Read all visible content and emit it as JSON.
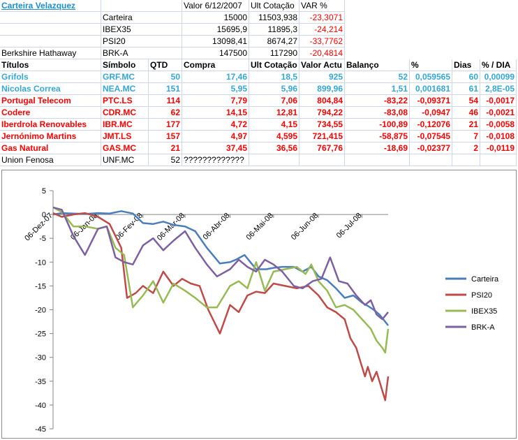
{
  "sheet": {
    "title_link": "Carteira Velazquez",
    "top_headers": [
      "Valor 6/12/2007",
      "Ult Cotação",
      "VAR %"
    ],
    "indices": [
      {
        "name": "",
        "symbol": "Carteira",
        "value": "15000",
        "ult": "11503,938",
        "var": "-23,3071"
      },
      {
        "name": "",
        "symbol": "IBEX35",
        "value": "15695,9",
        "ult": "11895,3",
        "var": "-24,214"
      },
      {
        "name": "",
        "symbol": "PSI20",
        "value": "13098,41",
        "ult": "8674,27",
        "var": "-33,7762"
      },
      {
        "name": "Berkshire Hathaway",
        "symbol": "BRK-A",
        "value": "147500",
        "ult": "117290",
        "var": "-20,4814"
      }
    ],
    "headers": [
      "Títulos",
      "Símbolo",
      "QTD",
      "Compra",
      "Ult Cotação",
      "Valor Actu",
      "Balanço",
      "%",
      "Dias",
      "% / DIA"
    ],
    "rows": [
      {
        "name": "Grifols",
        "symbol": "GRF.MC",
        "qtd": "50",
        "compra": "17,46",
        "ult": "18,5",
        "valor": "925",
        "balanco": "52",
        "pct": "0,059565",
        "dias": "60",
        "pct_dia": "0,00099",
        "color": "blue"
      },
      {
        "name": "Nicolas Correa",
        "symbol": "NEA.MC",
        "qtd": "151",
        "compra": "5,95",
        "ult": "5,96",
        "valor": "899,96",
        "balanco": "1,51",
        "pct": "0,001681",
        "dias": "61",
        "pct_dia": "2,8E-05",
        "color": "blue"
      },
      {
        "name": "Portugal Telecom",
        "symbol": "PTC.LS",
        "qtd": "114",
        "compra": "7,79",
        "ult": "7,06",
        "valor": "804,84",
        "balanco": "-83,22",
        "pct": "-0,09371",
        "dias": "54",
        "pct_dia": "-0,0017",
        "color": "red"
      },
      {
        "name": "Codere",
        "symbol": "CDR.MC",
        "qtd": "62",
        "compra": "14,15",
        "ult": "12,81",
        "valor": "794,22",
        "balanco": "-83,08",
        "pct": "-0,0947",
        "dias": "46",
        "pct_dia": "-0,0021",
        "color": "red"
      },
      {
        "name": "Iberdrola Renovables",
        "symbol": "IBR.MC",
        "qtd": "177",
        "compra": "4,72",
        "ult": "4,15",
        "valor": "734,55",
        "balanco": "-100,89",
        "pct": "-0,12076",
        "dias": "21",
        "pct_dia": "-0,0058",
        "color": "red"
      },
      {
        "name": "Jernónimo Martins",
        "symbol": "JMT.LS",
        "qtd": "157",
        "compra": "4,97",
        "ult": "4,595",
        "valor": "721,415",
        "balanco": "-58,875",
        "pct": "-0,07545",
        "dias": "7",
        "pct_dia": "-0,0108",
        "color": "red"
      },
      {
        "name": "Gas Natural",
        "symbol": "GAS.MC",
        "qtd": "21",
        "compra": "37,45",
        "ult": "36,56",
        "valor": "767,76",
        "balanco": "-18,69",
        "pct": "-0,02377",
        "dias": "2",
        "pct_dia": "-0,0119",
        "color": "red"
      },
      {
        "name": "Union Fenosa",
        "symbol": "UNF.MC",
        "qtd": "52",
        "compra": "?????????????",
        "ult": "",
        "valor": "",
        "balanco": "",
        "pct": "",
        "dias": "",
        "pct_dia": "",
        "color": "black"
      }
    ]
  },
  "colors": {
    "blue_text": "#33a8d6",
    "red_text": "#ff0000",
    "link": "#1f8fce"
  },
  "chart_data": {
    "type": "line",
    "ylim": [
      -45,
      5
    ],
    "yticks": [
      5,
      0,
      -5,
      -10,
      -15,
      -20,
      -25,
      -30,
      -35,
      -40,
      -45
    ],
    "xlim": [
      "2007-12-06",
      "2008-07-24"
    ],
    "xticks": [
      {
        "date": "2007-12-06",
        "label": "06-Dez-07"
      },
      {
        "date": "2008-01-06",
        "label": "06-Jan-08"
      },
      {
        "date": "2008-02-06",
        "label": "06-Fev-08"
      },
      {
        "date": "2008-03-06",
        "label": "06-Mar-08"
      },
      {
        "date": "2008-04-06",
        "label": "06-Abr-08"
      },
      {
        "date": "2008-05-06",
        "label": "06-Mai-08"
      },
      {
        "date": "2008-06-06",
        "label": "06-Jun-08"
      },
      {
        "date": "2008-07-06",
        "label": "06-Jul-08"
      }
    ],
    "legend_position": "right",
    "grid": false,
    "series": [
      {
        "name": "Carteira",
        "color": "#4a7ebb",
        "points": [
          [
            "2007-12-06",
            0
          ],
          [
            "2007-12-12",
            0.3
          ],
          [
            "2007-12-20",
            0.2
          ],
          [
            "2007-12-28",
            0.1
          ],
          [
            "2008-01-06",
            0.3
          ],
          [
            "2008-01-14",
            0.2
          ],
          [
            "2008-01-22",
            0.7
          ],
          [
            "2008-01-30",
            0.2
          ],
          [
            "2008-02-06",
            -1.8
          ],
          [
            "2008-02-13",
            -2
          ],
          [
            "2008-02-20",
            -1.5
          ],
          [
            "2008-02-27",
            -2.2
          ],
          [
            "2008-03-06",
            -2.5
          ],
          [
            "2008-03-13",
            -3.5
          ],
          [
            "2008-03-21",
            -7
          ],
          [
            "2008-03-30",
            -10.3
          ],
          [
            "2008-04-06",
            -10
          ],
          [
            "2008-04-10",
            -9.5
          ],
          [
            "2008-04-16",
            -8.5
          ],
          [
            "2008-04-24",
            -11.5
          ],
          [
            "2008-05-01",
            -11.5
          ],
          [
            "2008-05-06",
            -11.2
          ],
          [
            "2008-05-12",
            -11
          ],
          [
            "2008-05-20",
            -11
          ],
          [
            "2008-05-26",
            -12
          ],
          [
            "2008-06-01",
            -11
          ],
          [
            "2008-06-06",
            -13
          ],
          [
            "2008-06-12",
            -13.8
          ],
          [
            "2008-06-18",
            -15.5
          ],
          [
            "2008-06-24",
            -17.5
          ],
          [
            "2008-06-30",
            -17
          ],
          [
            "2008-07-06",
            -18.5
          ],
          [
            "2008-07-10",
            -19.2
          ],
          [
            "2008-07-14",
            -20
          ],
          [
            "2008-07-18",
            -21
          ],
          [
            "2008-07-22",
            -22.5
          ],
          [
            "2008-07-24",
            -23.3
          ]
        ]
      },
      {
        "name": "PSI20",
        "color": "#be4b48",
        "points": [
          [
            "2007-12-06",
            0.3
          ],
          [
            "2007-12-12",
            -0.5
          ],
          [
            "2007-12-20",
            0
          ],
          [
            "2007-12-28",
            0.3
          ],
          [
            "2008-01-06",
            -0.5
          ],
          [
            "2008-01-14",
            -2
          ],
          [
            "2008-01-22",
            -7
          ],
          [
            "2008-01-26",
            -17.5
          ],
          [
            "2008-02-01",
            -16.5
          ],
          [
            "2008-02-06",
            -15
          ],
          [
            "2008-02-13",
            -16.5
          ],
          [
            "2008-02-20",
            -12
          ],
          [
            "2008-02-27",
            -15
          ],
          [
            "2008-03-04",
            -13.5
          ],
          [
            "2008-03-10",
            -14.5
          ],
          [
            "2008-03-16",
            -15
          ],
          [
            "2008-03-22",
            -20
          ],
          [
            "2008-03-30",
            -25
          ],
          [
            "2008-04-06",
            -19
          ],
          [
            "2008-04-12",
            -20.5
          ],
          [
            "2008-04-18",
            -17
          ],
          [
            "2008-04-24",
            -16.2
          ],
          [
            "2008-04-30",
            -16.5
          ],
          [
            "2008-05-06",
            -14.5
          ],
          [
            "2008-05-14",
            -15
          ],
          [
            "2008-05-22",
            -15.5
          ],
          [
            "2008-05-30",
            -15
          ],
          [
            "2008-06-06",
            -17
          ],
          [
            "2008-06-12",
            -19.5
          ],
          [
            "2008-06-18",
            -20.5
          ],
          [
            "2008-06-24",
            -22
          ],
          [
            "2008-06-28",
            -26
          ],
          [
            "2008-07-02",
            -28
          ],
          [
            "2008-07-05",
            -31
          ],
          [
            "2008-07-08",
            -34
          ],
          [
            "2008-07-10",
            -32
          ],
          [
            "2008-07-13",
            -35
          ],
          [
            "2008-07-16",
            -33
          ],
          [
            "2008-07-19",
            -36
          ],
          [
            "2008-07-22",
            -39
          ],
          [
            "2008-07-24",
            -34
          ]
        ]
      },
      {
        "name": "IBEX35",
        "color": "#98b954",
        "points": [
          [
            "2007-12-06",
            1.5
          ],
          [
            "2007-12-12",
            0.5
          ],
          [
            "2007-12-20",
            -2.5
          ],
          [
            "2007-12-28",
            -2.5
          ],
          [
            "2008-01-06",
            -3
          ],
          [
            "2008-01-12",
            -2.5
          ],
          [
            "2008-01-18",
            -7
          ],
          [
            "2008-01-24",
            -8.5
          ],
          [
            "2008-01-30",
            -19.5
          ],
          [
            "2008-02-06",
            -17
          ],
          [
            "2008-02-13",
            -14
          ],
          [
            "2008-02-20",
            -18.5
          ],
          [
            "2008-02-27",
            -14.5
          ],
          [
            "2008-03-06",
            -16
          ],
          [
            "2008-03-13",
            -17.5
          ],
          [
            "2008-03-21",
            -19.5
          ],
          [
            "2008-03-28",
            -19.5
          ],
          [
            "2008-04-06",
            -15
          ],
          [
            "2008-04-12",
            -14
          ],
          [
            "2008-04-18",
            -15.5
          ],
          [
            "2008-04-24",
            -10
          ],
          [
            "2008-04-30",
            -16
          ],
          [
            "2008-05-06",
            -12
          ],
          [
            "2008-05-14",
            -11.5
          ],
          [
            "2008-05-22",
            -11
          ],
          [
            "2008-05-28",
            -12.5
          ],
          [
            "2008-06-01",
            -10.5
          ],
          [
            "2008-06-06",
            -14
          ],
          [
            "2008-06-12",
            -16
          ],
          [
            "2008-06-18",
            -19.5
          ],
          [
            "2008-06-24",
            -19
          ],
          [
            "2008-06-30",
            -20
          ],
          [
            "2008-07-06",
            -22
          ],
          [
            "2008-07-12",
            -24
          ],
          [
            "2008-07-16",
            -26.5
          ],
          [
            "2008-07-20",
            -28
          ],
          [
            "2008-07-22",
            -29
          ],
          [
            "2008-07-24",
            -24
          ]
        ]
      },
      {
        "name": "BRK-A",
        "color": "#7d60a0",
        "points": [
          [
            "2007-12-06",
            1.5
          ],
          [
            "2007-12-12",
            1
          ],
          [
            "2007-12-20",
            -4.5
          ],
          [
            "2007-12-28",
            -8.5
          ],
          [
            "2008-01-06",
            -3
          ],
          [
            "2008-01-12",
            -2.5
          ],
          [
            "2008-01-18",
            -9
          ],
          [
            "2008-01-24",
            -10
          ],
          [
            "2008-01-30",
            -10.5
          ],
          [
            "2008-02-06",
            -6.5
          ],
          [
            "2008-02-13",
            -5
          ],
          [
            "2008-02-20",
            -7.5
          ],
          [
            "2008-02-27",
            -5.5
          ],
          [
            "2008-03-06",
            -3.5
          ],
          [
            "2008-03-13",
            -7
          ],
          [
            "2008-03-21",
            -10.5
          ],
          [
            "2008-03-28",
            -13
          ],
          [
            "2008-04-06",
            -11.5
          ],
          [
            "2008-04-12",
            -9.5
          ],
          [
            "2008-04-18",
            -11
          ],
          [
            "2008-04-24",
            -12
          ],
          [
            "2008-04-30",
            -9.5
          ],
          [
            "2008-05-06",
            -10.5
          ],
          [
            "2008-05-12",
            -12
          ],
          [
            "2008-05-20",
            -15
          ],
          [
            "2008-05-26",
            -15.5
          ],
          [
            "2008-06-02",
            -14
          ],
          [
            "2008-06-08",
            -13.5
          ],
          [
            "2008-06-14",
            -9
          ],
          [
            "2008-06-20",
            -14
          ],
          [
            "2008-06-26",
            -14.5
          ],
          [
            "2008-07-02",
            -17
          ],
          [
            "2008-07-08",
            -19
          ],
          [
            "2008-07-12",
            -18
          ],
          [
            "2008-07-16",
            -21
          ],
          [
            "2008-07-20",
            -22
          ],
          [
            "2008-07-24",
            -20.5
          ]
        ]
      }
    ]
  }
}
